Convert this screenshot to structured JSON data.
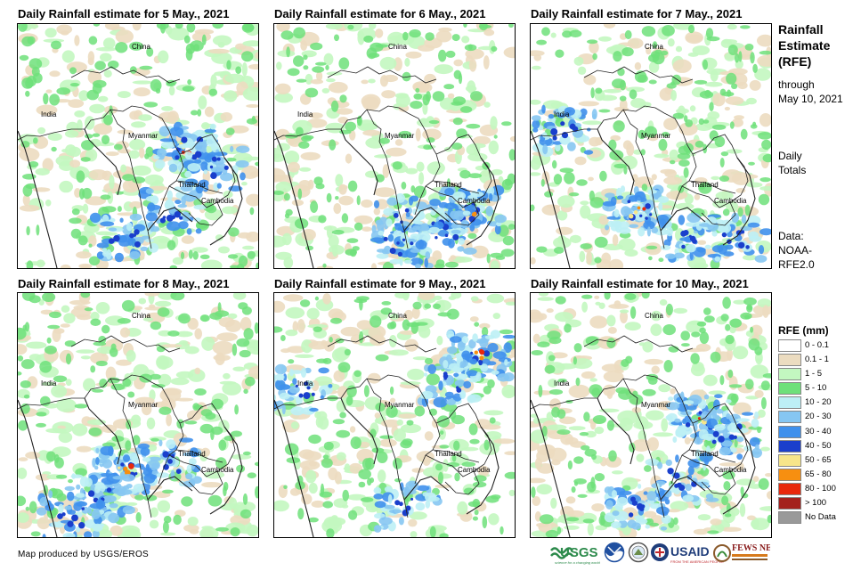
{
  "panels": [
    {
      "title": "Daily Rainfall estimate for 5 May., 2021",
      "labels": [
        "China",
        "India",
        "Myanmar",
        "Thailand",
        "Cambodia"
      ],
      "seed": 11,
      "heavy": "southeast"
    },
    {
      "title": "Daily Rainfall estimate for 6 May., 2021",
      "labels": [
        "China",
        "India",
        "Myanmar",
        "Thailand",
        "Cambodia"
      ],
      "seed": 23,
      "heavy": "cambodia"
    },
    {
      "title": "Daily Rainfall estimate for 7 May., 2021",
      "labels": [
        "China",
        "India",
        "Myanmar",
        "Thailand",
        "Cambodia"
      ],
      "seed": 37,
      "heavy": "south"
    },
    {
      "title": "Daily Rainfall estimate for 8 May., 2021",
      "labels": [
        "China",
        "India",
        "Myanmar",
        "Thailand",
        "Cambodia"
      ],
      "seed": 41,
      "heavy": "southwest"
    },
    {
      "title": "Daily Rainfall estimate for 9 May., 2021",
      "labels": [
        "China",
        "India",
        "Myanmar",
        "Thailand",
        "Cambodia"
      ],
      "seed": 53,
      "heavy": "north"
    },
    {
      "title": "Daily Rainfall estimate for 10 May., 2021",
      "labels": [
        "China",
        "India",
        "Myanmar",
        "Thailand",
        "Cambodia"
      ],
      "seed": 67,
      "heavy": "southeast"
    }
  ],
  "sidebar": {
    "title_lines": [
      "Rainfall",
      "Estimate",
      "(RFE)"
    ],
    "through": "through",
    "date": "May 10, 2021",
    "daily": "Daily",
    "totals": "Totals",
    "data_label": "Data:",
    "data_source_1": "NOAA-",
    "data_source_2": "RFE2.0"
  },
  "legend": {
    "title": "RFE (mm)",
    "items": [
      {
        "label": "0 - 0.1",
        "color": "#ffffff"
      },
      {
        "label": "0.1 - 1",
        "color": "#ecdcc0"
      },
      {
        "label": "1 - 5",
        "color": "#c3f7c0"
      },
      {
        "label": "5 - 10",
        "color": "#6ee07a"
      },
      {
        "label": "10 - 20",
        "color": "#bdeff5"
      },
      {
        "label": "20 - 30",
        "color": "#86c6f2"
      },
      {
        "label": "30 - 40",
        "color": "#3f90ec"
      },
      {
        "label": "40 - 50",
        "color": "#1a3fcc"
      },
      {
        "label": "50 - 65",
        "color": "#f7e58a"
      },
      {
        "label": "65 - 80",
        "color": "#f78f10"
      },
      {
        "label": "80 - 100",
        "color": "#e8280c"
      },
      {
        "label": "> 100",
        "color": "#a4211c"
      },
      {
        "label": "No Data",
        "color": "#999999"
      }
    ]
  },
  "credit": "Map produced by USGS/EROS",
  "logos": {
    "usgs": "USGS",
    "usgs_tagline": "science for a changing world",
    "usaid": "USAID",
    "usaid_tagline": "FROM THE AMERICAN PEOPLE",
    "fewsnet": "FEWS NET"
  }
}
